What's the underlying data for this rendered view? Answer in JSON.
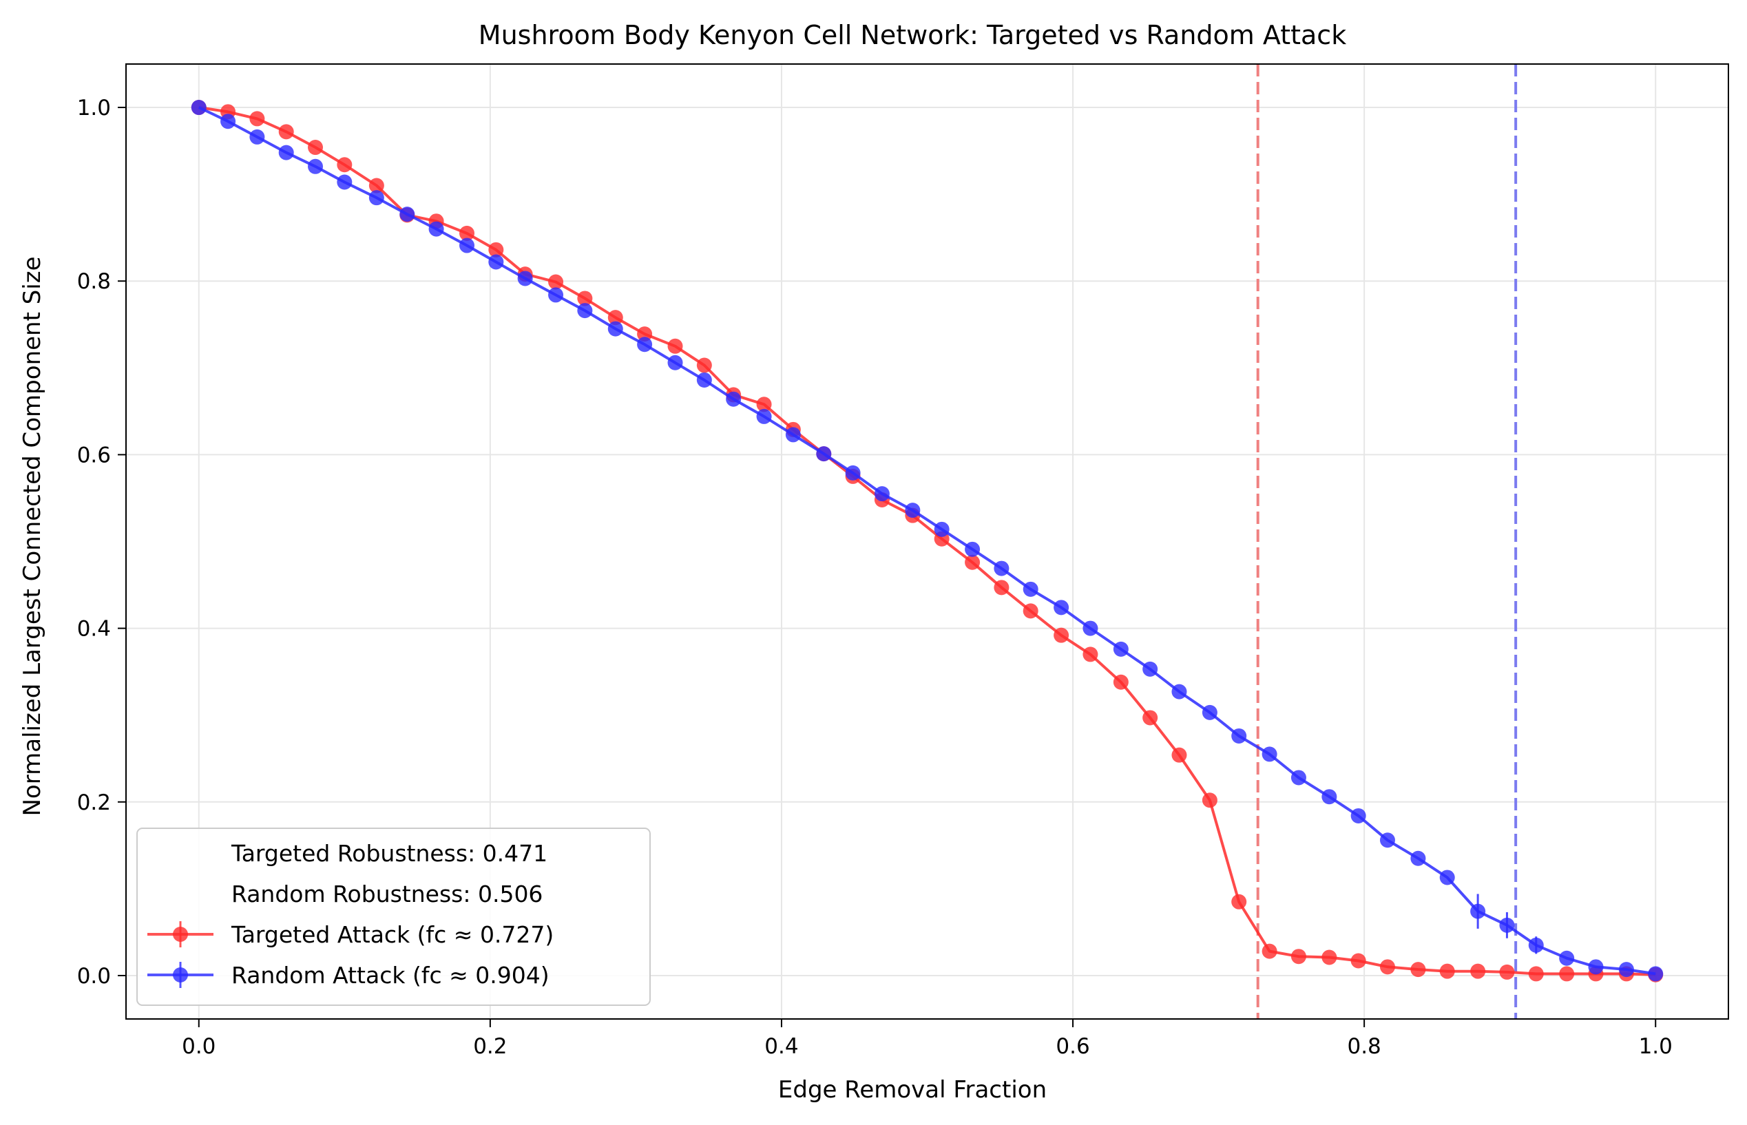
{
  "chart_data": {
    "type": "line",
    "title": "Mushroom Body Kenyon Cell Network: Targeted vs Random Attack",
    "xlabel": "Edge Removal Fraction",
    "ylabel": "Normalized Largest Connected Component Size",
    "xlim": [
      -0.05,
      1.05
    ],
    "ylim": [
      -0.05,
      1.05
    ],
    "xticks": [
      "0.0",
      "0.2",
      "0.4",
      "0.6",
      "0.8",
      "1.0"
    ],
    "yticks": [
      "0.0",
      "0.2",
      "0.4",
      "0.6",
      "0.8",
      "1.0"
    ],
    "grid": true,
    "legend_position": "lower-left",
    "legend": {
      "targeted_robustness": "Targeted Robustness: 0.471",
      "random_robustness": "Random Robustness: 0.506",
      "targeted_label": "Targeted Attack (fc ≈ 0.727)",
      "random_label": "Random Attack (fc ≈ 0.904)"
    },
    "critical_lines": [
      {
        "x": 0.727,
        "color": "#f08080"
      },
      {
        "x": 0.904,
        "color": "#7b7bf0"
      }
    ],
    "series": [
      {
        "name": "Targeted Attack (fc ≈ 0.727)",
        "color": "#ff2a2a",
        "x": [
          0.0,
          0.02,
          0.04,
          0.06,
          0.08,
          0.1,
          0.122,
          0.143,
          0.163,
          0.184,
          0.204,
          0.224,
          0.245,
          0.265,
          0.286,
          0.306,
          0.327,
          0.347,
          0.367,
          0.388,
          0.408,
          0.429,
          0.449,
          0.469,
          0.49,
          0.51,
          0.531,
          0.551,
          0.571,
          0.592,
          0.612,
          0.633,
          0.653,
          0.673,
          0.694,
          0.714,
          0.735,
          0.755,
          0.776,
          0.796,
          0.816,
          0.837,
          0.857,
          0.878,
          0.898,
          0.918,
          0.939,
          0.959,
          0.98,
          1.0
        ],
        "values": [
          1.0,
          0.995,
          0.987,
          0.972,
          0.954,
          0.934,
          0.91,
          0.876,
          0.869,
          0.855,
          0.836,
          0.808,
          0.799,
          0.78,
          0.758,
          0.739,
          0.725,
          0.703,
          0.669,
          0.658,
          0.629,
          0.601,
          0.575,
          0.548,
          0.53,
          0.503,
          0.476,
          0.447,
          0.42,
          0.392,
          0.37,
          0.338,
          0.297,
          0.254,
          0.202,
          0.085,
          0.028,
          0.022,
          0.021,
          0.017,
          0.01,
          0.007,
          0.005,
          0.005,
          0.004,
          0.002,
          0.002,
          0.002,
          0.002,
          0.001
        ]
      },
      {
        "name": "Random Attack (fc ≈ 0.904)",
        "color": "#2a2aff",
        "x": [
          0.0,
          0.02,
          0.04,
          0.06,
          0.08,
          0.1,
          0.122,
          0.143,
          0.163,
          0.184,
          0.204,
          0.224,
          0.245,
          0.265,
          0.286,
          0.306,
          0.327,
          0.347,
          0.367,
          0.388,
          0.408,
          0.429,
          0.449,
          0.469,
          0.49,
          0.51,
          0.531,
          0.551,
          0.571,
          0.592,
          0.612,
          0.633,
          0.653,
          0.673,
          0.694,
          0.714,
          0.735,
          0.755,
          0.776,
          0.796,
          0.816,
          0.837,
          0.857,
          0.878,
          0.898,
          0.918,
          0.939,
          0.959,
          0.98,
          1.0
        ],
        "values": [
          1.0,
          0.984,
          0.966,
          0.948,
          0.932,
          0.914,
          0.896,
          0.877,
          0.86,
          0.841,
          0.822,
          0.803,
          0.784,
          0.766,
          0.745,
          0.727,
          0.706,
          0.686,
          0.664,
          0.644,
          0.623,
          0.601,
          0.579,
          0.555,
          0.536,
          0.514,
          0.491,
          0.469,
          0.445,
          0.424,
          0.4,
          0.376,
          0.353,
          0.327,
          0.303,
          0.276,
          0.255,
          0.228,
          0.206,
          0.184,
          0.156,
          0.135,
          0.113,
          0.074,
          0.058,
          0.035,
          0.02,
          0.01,
          0.007,
          0.002
        ],
        "error": [
          0,
          0,
          0,
          0,
          0,
          0,
          0,
          0,
          0,
          0,
          0,
          0,
          0,
          0,
          0,
          0,
          0,
          0,
          0,
          0,
          0,
          0,
          0,
          0,
          0,
          0,
          0,
          0,
          0,
          0,
          0,
          0,
          0,
          0,
          0,
          0,
          0,
          0,
          0,
          0,
          0,
          0,
          0,
          0.02,
          0.015,
          0.01,
          0,
          0,
          0,
          0
        ]
      }
    ]
  }
}
